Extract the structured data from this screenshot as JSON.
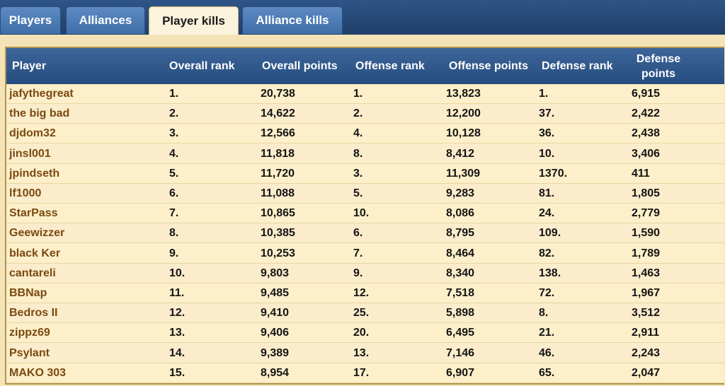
{
  "tabs": [
    {
      "label": "Players",
      "active": false
    },
    {
      "label": "Alliances",
      "active": false
    },
    {
      "label": "Player kills",
      "active": true
    },
    {
      "label": "Alliance kills",
      "active": false
    }
  ],
  "table": {
    "headers": {
      "player": "Player",
      "overall_rank": "Overall rank",
      "overall_points": "Overall points",
      "offense_rank": "Offense rank",
      "offense_points": "Offense points",
      "defense_rank": "Defense rank",
      "defense_points_line1": "Defense",
      "defense_points_line2": "points"
    },
    "rows": [
      {
        "player": "jafythegreat",
        "overall_rank": "1.",
        "overall_points": "20,738",
        "offense_rank": "1.",
        "offense_points": "13,823",
        "defense_rank": "1.",
        "defense_points": "6,915"
      },
      {
        "player": "the big bad",
        "overall_rank": "2.",
        "overall_points": "14,622",
        "offense_rank": "2.",
        "offense_points": "12,200",
        "defense_rank": "37.",
        "defense_points": "2,422"
      },
      {
        "player": "djdom32",
        "overall_rank": "3.",
        "overall_points": "12,566",
        "offense_rank": "4.",
        "offense_points": "10,128",
        "defense_rank": "36.",
        "defense_points": "2,438"
      },
      {
        "player": "jinsl001",
        "overall_rank": "4.",
        "overall_points": "11,818",
        "offense_rank": "8.",
        "offense_points": "8,412",
        "defense_rank": "10.",
        "defense_points": "3,406"
      },
      {
        "player": "jpindseth",
        "overall_rank": "5.",
        "overall_points": "11,720",
        "offense_rank": "3.",
        "offense_points": "11,309",
        "defense_rank": "1370.",
        "defense_points": "411"
      },
      {
        "player": "lf1000",
        "overall_rank": "6.",
        "overall_points": "11,088",
        "offense_rank": "5.",
        "offense_points": "9,283",
        "defense_rank": "81.",
        "defense_points": "1,805"
      },
      {
        "player": "StarPass",
        "overall_rank": "7.",
        "overall_points": "10,865",
        "offense_rank": "10.",
        "offense_points": "8,086",
        "defense_rank": "24.",
        "defense_points": "2,779"
      },
      {
        "player": "Geewizzer",
        "overall_rank": "8.",
        "overall_points": "10,385",
        "offense_rank": "6.",
        "offense_points": "8,795",
        "defense_rank": "109.",
        "defense_points": "1,590"
      },
      {
        "player": "black Ker",
        "overall_rank": "9.",
        "overall_points": "10,253",
        "offense_rank": "7.",
        "offense_points": "8,464",
        "defense_rank": "82.",
        "defense_points": "1,789"
      },
      {
        "player": "cantareli",
        "overall_rank": "10.",
        "overall_points": "9,803",
        "offense_rank": "9.",
        "offense_points": "8,340",
        "defense_rank": "138.",
        "defense_points": "1,463"
      },
      {
        "player": "BBNap",
        "overall_rank": "11.",
        "overall_points": "9,485",
        "offense_rank": "12.",
        "offense_points": "7,518",
        "defense_rank": "72.",
        "defense_points": "1,967"
      },
      {
        "player": "Bedros II",
        "overall_rank": "12.",
        "overall_points": "9,410",
        "offense_rank": "25.",
        "offense_points": "5,898",
        "defense_rank": "8.",
        "defense_points": "3,512"
      },
      {
        "player": "zippz69",
        "overall_rank": "13.",
        "overall_points": "9,406",
        "offense_rank": "20.",
        "offense_points": "6,495",
        "defense_rank": "21.",
        "defense_points": "2,911"
      },
      {
        "player": "Psylant",
        "overall_rank": "14.",
        "overall_points": "9,389",
        "offense_rank": "13.",
        "offense_points": "7,146",
        "defense_rank": "46.",
        "defense_points": "2,243"
      },
      {
        "player": "MAKO 303",
        "overall_rank": "15.",
        "overall_points": "8,954",
        "offense_rank": "17.",
        "offense_points": "6,907",
        "defense_rank": "65.",
        "defense_points": "2,047"
      }
    ]
  }
}
